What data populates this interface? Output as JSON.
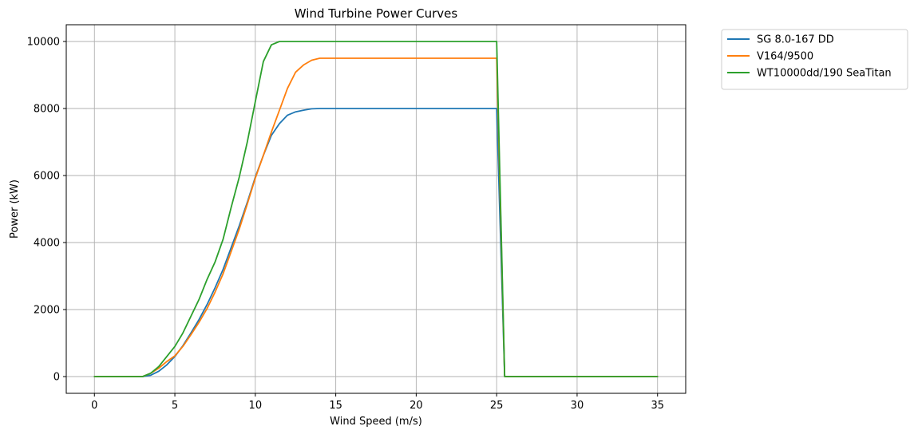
{
  "chart_data": {
    "type": "line",
    "title": "Wind Turbine Power Curves",
    "xlabel": "Wind Speed (m/s)",
    "ylabel": "Power (kW)",
    "xlim": [
      -1.75,
      36.75
    ],
    "ylim": [
      -500,
      10500
    ],
    "xticks": [
      0,
      5,
      10,
      15,
      20,
      25,
      30,
      35
    ],
    "yticks": [
      0,
      2000,
      4000,
      6000,
      8000,
      10000
    ],
    "grid": true,
    "legend_position": "outside-top-right",
    "series": [
      {
        "name": "SG 8.0-167 DD",
        "color": "#1f77b4",
        "x": [
          0,
          3,
          3.5,
          4,
          4.5,
          5,
          5.5,
          6,
          6.5,
          7,
          7.5,
          8,
          8.5,
          9,
          9.5,
          10,
          10.5,
          11,
          11.5,
          12,
          12.5,
          13,
          13.5,
          14,
          25,
          25.5,
          35
        ],
        "y": [
          0,
          0,
          40,
          160,
          350,
          600,
          920,
          1300,
          1700,
          2150,
          2650,
          3200,
          3850,
          4500,
          5200,
          5950,
          6600,
          7200,
          7550,
          7800,
          7900,
          7950,
          7990,
          8000,
          8000,
          0,
          0
        ]
      },
      {
        "name": "V164/9500",
        "color": "#ff7f0e",
        "x": [
          0,
          3,
          3.5,
          4,
          4.5,
          5,
          5.5,
          6,
          6.5,
          7,
          7.5,
          8,
          8.5,
          9,
          9.5,
          10,
          10.5,
          11,
          11.5,
          12,
          12.5,
          13,
          13.5,
          14,
          25,
          25.5,
          35
        ],
        "y": [
          0,
          0,
          100,
          250,
          450,
          620,
          900,
          1250,
          1620,
          2030,
          2520,
          3070,
          3730,
          4400,
          5150,
          5920,
          6600,
          7300,
          7950,
          8600,
          9080,
          9300,
          9440,
          9500,
          9500,
          0,
          0
        ]
      },
      {
        "name": "WT10000dd/190 SeaTitan",
        "color": "#2ca02c",
        "x": [
          0,
          3,
          3.5,
          4,
          4.5,
          5,
          5.5,
          6,
          6.5,
          7,
          7.5,
          8,
          8.5,
          9,
          9.5,
          10,
          10.5,
          11,
          11.5,
          12,
          25,
          25.5,
          35
        ],
        "y": [
          0,
          0,
          100,
          300,
          600,
          900,
          1300,
          1800,
          2300,
          2900,
          3420,
          4100,
          5050,
          5950,
          7000,
          8200,
          9400,
          9900,
          10000,
          10000,
          10000,
          0,
          0
        ]
      }
    ]
  }
}
